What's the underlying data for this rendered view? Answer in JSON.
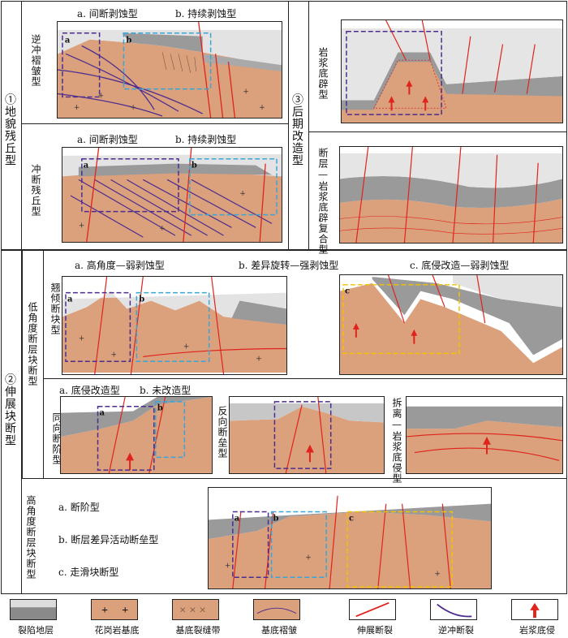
{
  "groups": {
    "g1": {
      "label": "①地貌残丘型"
    },
    "g2": {
      "label": "②伸展块断型"
    },
    "g3": {
      "label": "③后期改造型"
    }
  },
  "subtypes": {
    "s1": "逆冲褶皱型",
    "s2": "冲断残丘型",
    "s3": "岩浆底辟型",
    "s4": "断层—岩浆底辟复合型",
    "s5": "低角度断层块断型",
    "s6": "翘倾断块型",
    "s7": "同向断阶型",
    "s8": "反向断垒型",
    "s9": "拆离—岩浆底侵型",
    "s10": "高角度断层块断型"
  },
  "captions": {
    "c1a": "a. 间断剥蚀型",
    "c1b": "b. 持续剥蚀型",
    "c2a": "a. 间断剥蚀型",
    "c2b": "b. 持续剥蚀型",
    "c5a": "a. 高角度—弱剥蚀型",
    "c5b": "b. 差异旋转—强剥蚀型",
    "c5c": "c. 底侵改造—弱剥蚀型",
    "c7a": "a. 底侵改造型",
    "c7b": "b. 未改造型",
    "c10a": "a. 断阶型",
    "c10b": "b. 断层差异活动断垒型",
    "c10c": "c. 走滑块断型"
  },
  "box_letters": {
    "a": "a",
    "b": "b",
    "c": "c"
  },
  "legend": [
    {
      "label": "裂陷地层",
      "icon": "rift-strata-icon"
    },
    {
      "label": "花岗岩基底",
      "icon": "granite-basement-icon"
    },
    {
      "label": "基底裂缝带",
      "icon": "fracture-zone-icon"
    },
    {
      "label": "基底褶皱",
      "icon": "basement-fold-icon"
    },
    {
      "label": "伸展断裂",
      "icon": "extensional-fault-icon"
    },
    {
      "label": "逆冲断裂",
      "icon": "thrust-fault-icon"
    },
    {
      "label": "岩浆底侵",
      "icon": "magma-underplating-icon"
    }
  ],
  "colors": {
    "basement": "#dba07c",
    "strata_dark": "#8a8a8a",
    "strata_mid": "#b5b5b5",
    "strata_light": "#dcdcdc",
    "fault": "#e0231c",
    "thrust": "#4b2d8f",
    "box_purple": "#4b2d8f",
    "box_blue": "#3aa6d8",
    "box_yellow": "#f2c200"
  }
}
